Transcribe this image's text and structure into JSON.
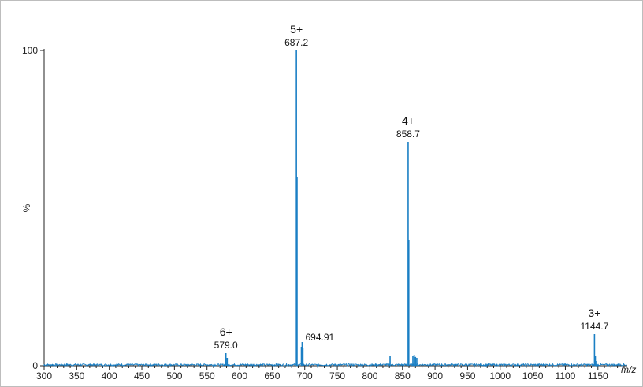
{
  "chart_data": {
    "type": "line",
    "title": "",
    "xlabel": "m/z",
    "ylabel": "%",
    "xlim": [
      300,
      1195
    ],
    "ylim": [
      0,
      100
    ],
    "x_ticks": [
      "300",
      "350",
      "400",
      "450",
      "500",
      "550",
      "600",
      "650",
      "700",
      "750",
      "800",
      "850",
      "900",
      "950",
      "1000",
      "1050",
      "1100",
      "1150"
    ],
    "y_ticks": [
      "0",
      "100"
    ],
    "series": [
      {
        "color": "#1a7fc4",
        "peaks": [
          {
            "x": 579.0,
            "y": 4
          },
          {
            "x": 581.0,
            "y": 2.5
          },
          {
            "x": 687.2,
            "y": 100
          },
          {
            "x": 688.2,
            "y": 60
          },
          {
            "x": 694.9,
            "y": 6
          },
          {
            "x": 696.0,
            "y": 7.5
          },
          {
            "x": 697.2,
            "y": 5.5
          },
          {
            "x": 831.0,
            "y": 3
          },
          {
            "x": 858.7,
            "y": 71
          },
          {
            "x": 859.7,
            "y": 40
          },
          {
            "x": 866.0,
            "y": 3
          },
          {
            "x": 868.0,
            "y": 3.5
          },
          {
            "x": 870.0,
            "y": 2.8
          },
          {
            "x": 872.0,
            "y": 2.5
          },
          {
            "x": 1144.7,
            "y": 10
          },
          {
            "x": 1146.0,
            "y": 3
          },
          {
            "x": 1148.0,
            "y": 1.5
          }
        ]
      }
    ],
    "annotations": [
      {
        "charge": "5+",
        "mz": "687.2",
        "x": 687.2,
        "y": 100
      },
      {
        "charge": "4+",
        "mz": "858.7",
        "x": 858.7,
        "y": 71
      },
      {
        "charge": "6+",
        "mz": "579.0",
        "x": 579.0,
        "y": 4
      },
      {
        "charge": "3+",
        "mz": "1144.7",
        "x": 1144.7,
        "y": 10
      },
      {
        "charge": "",
        "mz": "694.91",
        "x": 694.9,
        "y": 6
      }
    ],
    "grid": false,
    "legend": "none"
  }
}
